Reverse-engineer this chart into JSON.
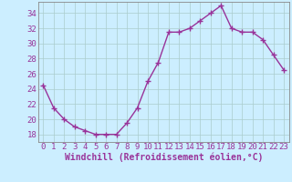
{
  "x": [
    0,
    1,
    2,
    3,
    4,
    5,
    6,
    7,
    8,
    9,
    10,
    11,
    12,
    13,
    14,
    15,
    16,
    17,
    18,
    19,
    20,
    21,
    22,
    23
  ],
  "y": [
    24.5,
    21.5,
    20.0,
    19.0,
    18.5,
    18.0,
    18.0,
    18.0,
    19.5,
    21.5,
    25.0,
    27.5,
    31.5,
    31.5,
    32.0,
    33.0,
    34.0,
    35.0,
    32.0,
    31.5,
    31.5,
    30.5,
    28.5,
    26.5
  ],
  "line_color": "#993399",
  "marker": "+",
  "marker_size": 4,
  "xlim": [
    -0.5,
    23.5
  ],
  "ylim": [
    17.0,
    35.5
  ],
  "yticks": [
    18,
    20,
    22,
    24,
    26,
    28,
    30,
    32,
    34
  ],
  "xticks": [
    0,
    1,
    2,
    3,
    4,
    5,
    6,
    7,
    8,
    9,
    10,
    11,
    12,
    13,
    14,
    15,
    16,
    17,
    18,
    19,
    20,
    21,
    22,
    23
  ],
  "xlabel": "Windchill (Refroidissement éolien,°C)",
  "xlabel_fontsize": 7,
  "tick_fontsize": 6.5,
  "bg_color": "#cceeff",
  "grid_color": "#aacccc",
  "axis_color": "#888888",
  "line_width": 1.0,
  "marker_edge_width": 1.0
}
